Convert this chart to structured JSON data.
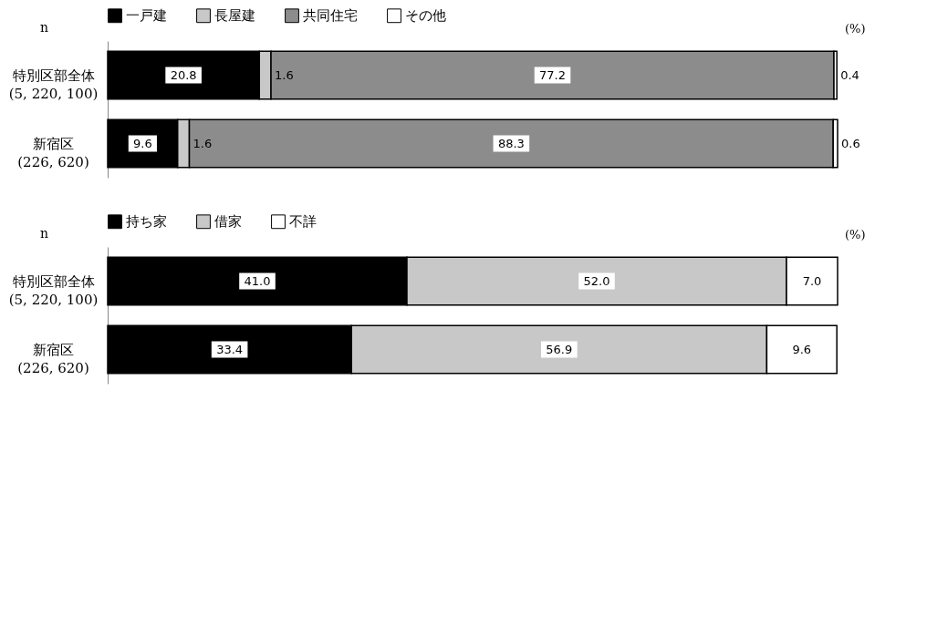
{
  "chart_data": [
    {
      "type": "bar",
      "orientation": "horizontal",
      "stacked": true,
      "legend": "top",
      "ylabel": "n",
      "annotations": [
        "(%)"
      ],
      "categories": [
        "特別区部全体\n(5, 220, 100)",
        "新宿区\n(226, 620)"
      ],
      "series": [
        {
          "name": "一戸建",
          "color": "#000000",
          "values": [
            20.8,
            9.6
          ],
          "value_labels": [
            "20.8",
            "9.6"
          ]
        },
        {
          "name": "長屋建",
          "color": "#c8c8c8",
          "values": [
            1.6,
            1.6
          ],
          "value_labels": [
            "1.6",
            "1.6"
          ]
        },
        {
          "name": "共同住宅",
          "color": "#8c8c8c",
          "values": [
            77.2,
            88.3
          ],
          "value_labels": [
            "77.2",
            "88.3"
          ]
        },
        {
          "name": "その他",
          "color": "#ffffff",
          "values": [
            0.4,
            0.6
          ],
          "value_labels": [
            "0.4",
            "0.6"
          ]
        }
      ]
    },
    {
      "type": "bar",
      "orientation": "horizontal",
      "stacked": true,
      "legend": "top",
      "ylabel": "n",
      "annotations": [
        "(%)"
      ],
      "categories": [
        "特別区部全体\n(5, 220, 100)",
        "新宿区\n(226, 620)"
      ],
      "series": [
        {
          "name": "持ち家",
          "color": "#000000",
          "values": [
            41.0,
            33.4
          ],
          "value_labels": [
            "41.0",
            "33.4"
          ]
        },
        {
          "name": "借家",
          "color": "#c8c8c8",
          "values": [
            52.0,
            56.9
          ],
          "value_labels": [
            "52.0",
            "56.9"
          ]
        },
        {
          "name": "不詳",
          "color": "#ffffff",
          "values": [
            7.0,
            9.6
          ],
          "value_labels": [
            "7.0",
            "9.6"
          ]
        }
      ]
    }
  ]
}
